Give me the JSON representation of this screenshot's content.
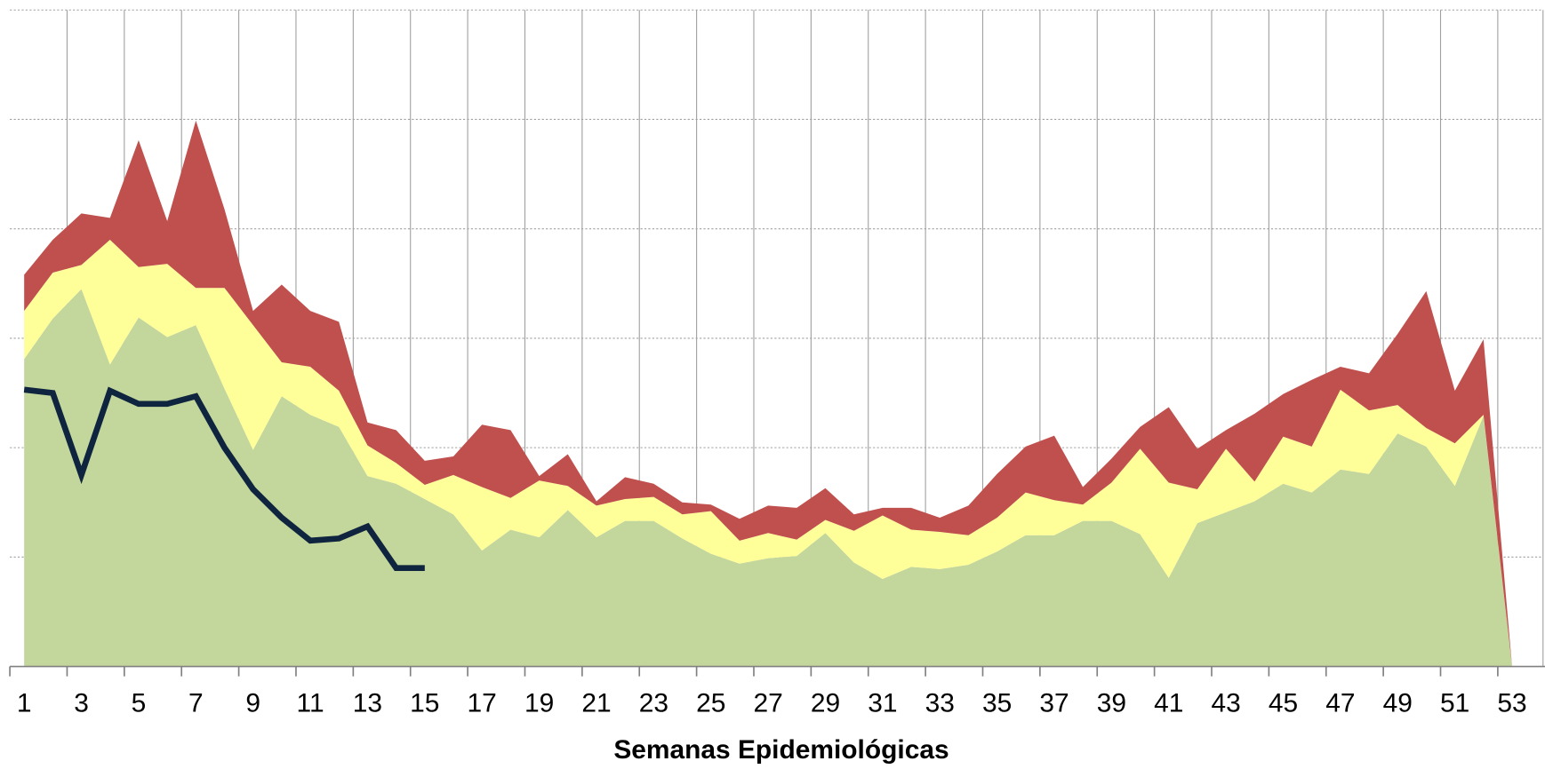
{
  "chart_data": {
    "type": "area",
    "stacked": true,
    "x_label": "Semanas Epidemiológicas",
    "categories": [
      1,
      null,
      3,
      null,
      5,
      null,
      7,
      null,
      9,
      null,
      11,
      null,
      13,
      null,
      15,
      null,
      17,
      null,
      19,
      null,
      21,
      null,
      23,
      null,
      25,
      null,
      27,
      null,
      29,
      null,
      31,
      null,
      33,
      null,
      35,
      null,
      37,
      null,
      39,
      null,
      41,
      null,
      43,
      null,
      45,
      null,
      47,
      null,
      49,
      null,
      51,
      null,
      53
    ],
    "ylim": [
      0,
      6
    ],
    "yticks": [
      0,
      1,
      2,
      3,
      4,
      5,
      6
    ],
    "grid": true,
    "series": [
      {
        "color": "#c3d69b",
        "values": [
          2.81,
          3.18,
          3.45,
          2.76,
          3.19,
          3.01,
          3.12,
          2.54,
          1.98,
          2.47,
          2.3,
          2.19,
          1.74,
          1.67,
          1.53,
          1.39,
          1.06,
          1.25,
          1.18,
          1.43,
          1.18,
          1.33,
          1.33,
          1.17,
          1.03,
          0.94,
          0.99,
          1.01,
          1.22,
          0.95,
          0.8,
          0.91,
          0.89,
          0.93,
          1.05,
          1.2,
          1.2,
          1.33,
          1.33,
          1.21,
          0.81,
          1.31,
          1.41,
          1.51,
          1.67,
          1.59,
          1.8,
          1.76,
          2.13,
          2.01,
          1.65,
          2.29,
          0
        ]
      },
      {
        "color": "#ffff99",
        "values": [
          0.44,
          0.42,
          0.22,
          1.14,
          0.46,
          0.67,
          0.34,
          0.92,
          1.14,
          0.31,
          0.44,
          0.33,
          0.28,
          0.19,
          0.13,
          0.36,
          0.58,
          0.29,
          0.52,
          0.22,
          0.29,
          0.2,
          0.22,
          0.22,
          0.39,
          0.21,
          0.23,
          0.15,
          0.12,
          0.29,
          0.58,
          0.34,
          0.34,
          0.27,
          0.31,
          0.39,
          0.32,
          0.15,
          0.35,
          0.78,
          0.87,
          0.31,
          0.58,
          0.18,
          0.43,
          0.42,
          0.73,
          0.58,
          0.26,
          0.17,
          0.39,
          0.01,
          0
        ]
      },
      {
        "color": "#c0504d",
        "values": [
          0.33,
          0.3,
          0.47,
          0.2,
          1.16,
          0.39,
          1.53,
          0.72,
          0.13,
          0.71,
          0.51,
          0.63,
          0.21,
          0.3,
          0.22,
          0.17,
          0.57,
          0.62,
          0.04,
          0.29,
          0.04,
          0.2,
          0.12,
          0.11,
          0.06,
          0.2,
          0.25,
          0.29,
          0.29,
          0.15,
          0.07,
          0.2,
          0.13,
          0.27,
          0.4,
          0.42,
          0.59,
          0.16,
          0.22,
          0.2,
          0.69,
          0.37,
          0.17,
          0.62,
          0.39,
          0.61,
          0.21,
          0.34,
          0.65,
          1.25,
          0.48,
          0.69,
          0
        ]
      },
      {
        "type": "line",
        "color": "#0f243e",
        "values": [
          2.53,
          2.5,
          1.75,
          2.52,
          2.4,
          2.4,
          2.47,
          2.0,
          1.62,
          1.36,
          1.15,
          1.17,
          1.28,
          0.9,
          0.9,
          null,
          null,
          null,
          null,
          null,
          null,
          null,
          null,
          null,
          null,
          null,
          null,
          null,
          null,
          null,
          null,
          null,
          null,
          null,
          null,
          null,
          null,
          null,
          null,
          null,
          null,
          null,
          null,
          null,
          null,
          null,
          null,
          null,
          null,
          null,
          null,
          null,
          null
        ]
      }
    ]
  }
}
